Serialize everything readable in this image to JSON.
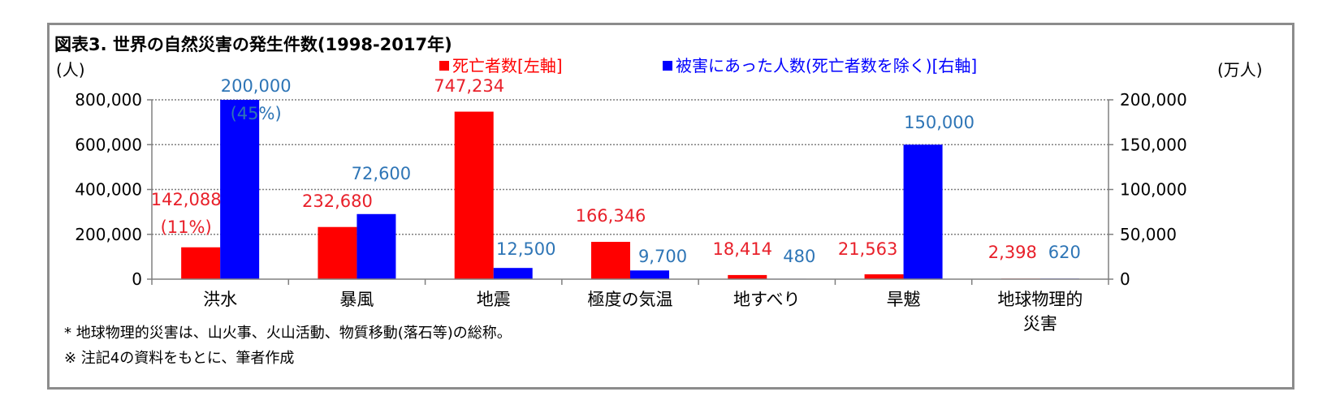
{
  "title": "図表3. 世界の自然災害の発生件数(1998-2017年)",
  "left_unit": "(人)",
  "right_unit": "(万人)",
  "legend": [
    {
      "label": "死亡者数[左軸]",
      "color": "#ff0000"
    },
    {
      "label": "被害にあった人数(死亡者数を除く)[右軸]",
      "color": "#0000ff"
    }
  ],
  "footnotes": [
    "*  地球物理的災害は、山火事、火山活動、物質移動(落石等)の総称。",
    "※ 注記4の資料をもとに、筆者作成"
  ],
  "chart_data": {
    "type": "bar",
    "categories": [
      "洪水",
      "暴風",
      "地震",
      "極度の気温",
      "地すべり",
      "旱魃",
      "地球物理的\n災害"
    ],
    "series": [
      {
        "name": "死亡者数[左軸]",
        "axis": "left",
        "color": "#ff0000",
        "values": [
          142088,
          232680,
          747234,
          166346,
          18414,
          21563,
          2398
        ]
      },
      {
        "name": "被害にあった人数(死亡者数を除く)[右軸]",
        "axis": "right",
        "color": "#0000ff",
        "values": [
          200000,
          72600,
          12500,
          9700,
          480,
          150000,
          620
        ]
      }
    ],
    "data_labels": [
      {
        "series": 0,
        "category": 0,
        "lines": [
          "142,088",
          "(11%)"
        ]
      },
      {
        "series": 0,
        "category": 1,
        "lines": [
          "232,680"
        ]
      },
      {
        "series": 0,
        "category": 2,
        "lines": [
          "747,234"
        ]
      },
      {
        "series": 0,
        "category": 3,
        "lines": [
          "166,346"
        ]
      },
      {
        "series": 0,
        "category": 4,
        "lines": [
          "18,414"
        ]
      },
      {
        "series": 0,
        "category": 5,
        "lines": [
          "21,563"
        ]
      },
      {
        "series": 0,
        "category": 6,
        "lines": [
          "2,398"
        ]
      },
      {
        "series": 1,
        "category": 0,
        "lines": [
          "200,000",
          "(45%)"
        ]
      },
      {
        "series": 1,
        "category": 1,
        "lines": [
          "72,600"
        ]
      },
      {
        "series": 1,
        "category": 2,
        "lines": [
          "12,500"
        ]
      },
      {
        "series": 1,
        "category": 3,
        "lines": [
          "9,700"
        ]
      },
      {
        "series": 1,
        "category": 4,
        "lines": [
          "480"
        ]
      },
      {
        "series": 1,
        "category": 5,
        "lines": [
          "150,000"
        ]
      },
      {
        "series": 1,
        "category": 6,
        "lines": [
          "620"
        ]
      }
    ],
    "left_axis": {
      "ylim": [
        0,
        800000
      ],
      "ticks": [
        "0",
        "200,000",
        "400,000",
        "600,000",
        "800,000"
      ]
    },
    "right_axis": {
      "ylim": [
        0,
        200000
      ],
      "ticks": [
        "0",
        "50,000",
        "100,000",
        "150,000",
        "200,000"
      ]
    },
    "grid": true,
    "label_colors": {
      "red": "#e8202a",
      "blue": "#2e75b6"
    }
  }
}
